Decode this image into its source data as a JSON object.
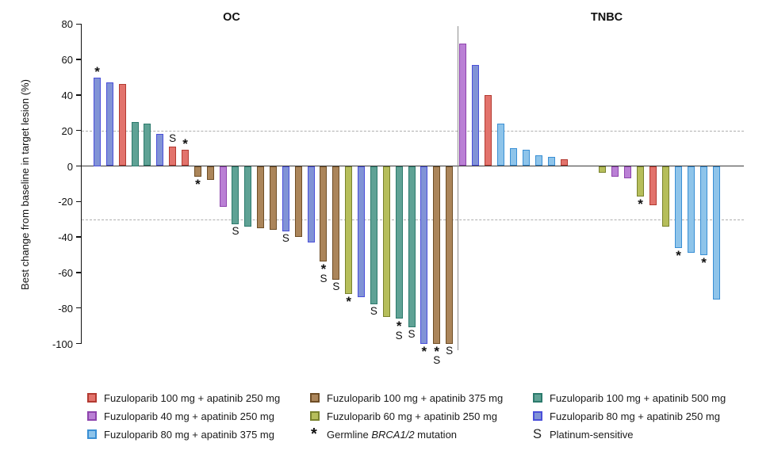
{
  "palette": {
    "red": {
      "fill": "#E2736C",
      "stroke": "#B33A31"
    },
    "purple": {
      "fill": "#BA80D5",
      "stroke": "#8E44AD"
    },
    "lightblue": {
      "fill": "#8EC4EA",
      "stroke": "#3A8FD4"
    },
    "brown": {
      "fill": "#AB855A",
      "stroke": "#6F4E26"
    },
    "olive": {
      "fill": "#B6BE5B",
      "stroke": "#79822D"
    },
    "teal": {
      "fill": "#5FA295",
      "stroke": "#2C7A6C"
    },
    "periwinkle": {
      "fill": "#8193D6",
      "stroke": "#4A4FD9"
    }
  },
  "chart_data": {
    "type": "bar",
    "subtype": "waterfall",
    "ylabel": "Best change from baseline in target lesion (%)",
    "ylim": [
      -100,
      80
    ],
    "y_ticks": [
      80,
      60,
      40,
      20,
      0,
      -20,
      -40,
      -60,
      -80,
      -100
    ],
    "reference_lines": [
      20,
      -30
    ],
    "grid": "dashed-reference-only",
    "marker_meanings": {
      "*": "Germline BRCA1/2 mutation",
      "S": "Platinum-sensitive"
    },
    "groups": [
      {
        "name": "OC",
        "bars": [
          {
            "v": 50,
            "c": "periwinkle",
            "m": "*"
          },
          {
            "v": 47,
            "c": "periwinkle",
            "m": ""
          },
          {
            "v": 46,
            "c": "red",
            "m": ""
          },
          {
            "v": 25,
            "c": "teal",
            "m": ""
          },
          {
            "v": 24,
            "c": "teal",
            "m": ""
          },
          {
            "v": 18,
            "c": "periwinkle",
            "m": ""
          },
          {
            "v": 11,
            "c": "red",
            "m": "S"
          },
          {
            "v": 9,
            "c": "red",
            "m": "*"
          },
          {
            "v": -6,
            "c": "brown",
            "m": "*"
          },
          {
            "v": -8,
            "c": "brown",
            "m": ""
          },
          {
            "v": -23,
            "c": "purple",
            "m": ""
          },
          {
            "v": -33,
            "c": "teal",
            "m": "S"
          },
          {
            "v": -34,
            "c": "teal",
            "m": ""
          },
          {
            "v": -35,
            "c": "brown",
            "m": ""
          },
          {
            "v": -36,
            "c": "brown",
            "m": ""
          },
          {
            "v": -37,
            "c": "periwinkle",
            "m": "S"
          },
          {
            "v": -40,
            "c": "brown",
            "m": ""
          },
          {
            "v": -43,
            "c": "periwinkle",
            "m": ""
          },
          {
            "v": -54,
            "c": "brown",
            "m": "*S"
          },
          {
            "v": -64,
            "c": "brown",
            "m": "S"
          },
          {
            "v": -72,
            "c": "olive",
            "m": "*"
          },
          {
            "v": -74,
            "c": "periwinkle",
            "m": ""
          },
          {
            "v": -78,
            "c": "teal",
            "m": "S"
          },
          {
            "v": -85,
            "c": "olive",
            "m": ""
          },
          {
            "v": -86,
            "c": "teal",
            "m": "*S"
          },
          {
            "v": -91,
            "c": "teal",
            "m": "S"
          },
          {
            "v": -100,
            "c": "periwinkle",
            "m": "*"
          },
          {
            "v": -100,
            "c": "brown",
            "m": "*S"
          },
          {
            "v": -100,
            "c": "brown",
            "m": "S"
          }
        ]
      },
      {
        "name": "TNBC",
        "bars": [
          {
            "v": 69,
            "c": "purple",
            "m": ""
          },
          {
            "v": 57,
            "c": "periwinkle",
            "m": ""
          },
          {
            "v": 40,
            "c": "red",
            "m": ""
          },
          {
            "v": 24,
            "c": "lightblue",
            "m": ""
          },
          {
            "v": 10,
            "c": "lightblue",
            "m": ""
          },
          {
            "v": 9,
            "c": "lightblue",
            "m": ""
          },
          {
            "v": 6,
            "c": "lightblue",
            "m": ""
          },
          {
            "v": 5,
            "c": "lightblue",
            "m": ""
          },
          {
            "v": 4,
            "c": "red",
            "m": ""
          },
          {
            "v": -4,
            "c": "olive",
            "m": ""
          },
          {
            "v": -6,
            "c": "purple",
            "m": ""
          },
          {
            "v": -7,
            "c": "purple",
            "m": ""
          },
          {
            "v": -17,
            "c": "olive",
            "m": "*"
          },
          {
            "v": -22,
            "c": "red",
            "m": ""
          },
          {
            "v": -34,
            "c": "olive",
            "m": ""
          },
          {
            "v": -46,
            "c": "lightblue",
            "m": "*"
          },
          {
            "v": -49,
            "c": "lightblue",
            "m": ""
          },
          {
            "v": -50,
            "c": "lightblue",
            "m": "*"
          },
          {
            "v": -75,
            "c": "lightblue",
            "m": ""
          }
        ]
      }
    ]
  },
  "legend": {
    "columns": [
      [
        {
          "swatch": "red",
          "parts": [
            {
              "t": "Fuzuloparib 100 mg + apatinib 250 mg"
            }
          ]
        },
        {
          "swatch": "purple",
          "parts": [
            {
              "t": "Fuzuloparib 40 mg + apatinib 250 mg"
            }
          ]
        },
        {
          "swatch": "lightblue",
          "parts": [
            {
              "t": "Fuzuloparib 80 mg + apatinib 375 mg"
            }
          ]
        }
      ],
      [
        {
          "swatch": "brown",
          "parts": [
            {
              "t": "Fuzuloparib 100 mg + apatinib 375 mg"
            }
          ]
        },
        {
          "swatch": "olive",
          "parts": [
            {
              "t": "Fuzuloparib 60 mg + apatinib 250 mg"
            }
          ]
        },
        {
          "symbol": "*",
          "parts": [
            {
              "t": "Germline "
            },
            {
              "t": "BRCA1/2",
              "i": true
            },
            {
              "t": " mutation"
            }
          ]
        }
      ],
      [
        {
          "swatch": "teal",
          "parts": [
            {
              "t": "Fuzuloparib 100 mg + apatinib 500 mg"
            }
          ]
        },
        {
          "swatch": "periwinkle",
          "parts": [
            {
              "t": "Fuzuloparib 80 mg + apatinib 250 mg"
            }
          ]
        },
        {
          "symbol": "S",
          "parts": [
            {
              "t": "Platinum-sensitive"
            }
          ]
        }
      ]
    ]
  }
}
